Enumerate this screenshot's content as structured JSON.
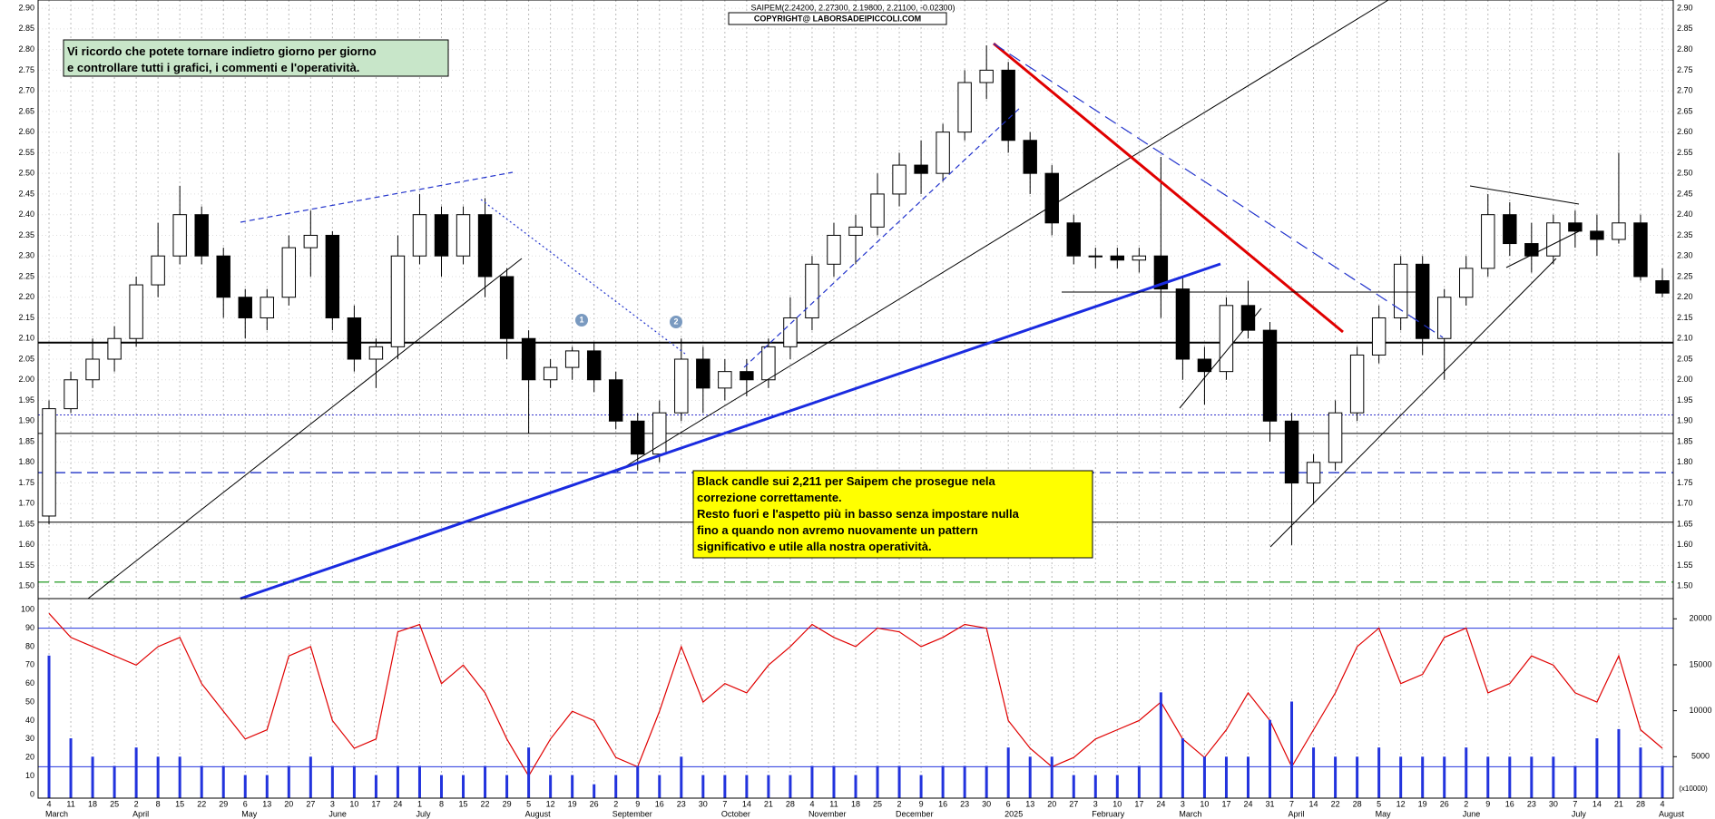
{
  "chart_data": [
    {
      "type": "candlestick",
      "title": "SAIPEM(2.24200, 2.27300, 2.19800, 2.21100, -0.02300)",
      "subtitle": "COPYRIGHT@ LABORSADEIPICCOLI.COM",
      "note": [
        "Vi ricordo che potete tornare indietro giorno per giorno",
        "e controllare tutti i grafici, i commenti e l'operatività."
      ],
      "comment": [
        "Black candle sui 2,211 per Saipem che prosegue nela",
        "correzione correttamente.",
        "Resto fuori e l'aspetto più in basso senza impostare nulla",
        "fino a quando non avremo nuovamente un pattern",
        "significativo e utile alla nostra operatività."
      ],
      "markers": [
        "1",
        "2"
      ],
      "open": [
        1.67,
        1.93,
        2.0,
        2.05,
        2.1,
        2.23,
        2.3,
        2.4,
        2.3,
        2.2,
        2.15,
        2.2,
        2.32,
        2.35,
        2.15,
        2.05,
        2.08,
        2.3,
        2.4,
        2.3,
        2.4,
        2.25,
        2.1,
        2.0,
        2.03,
        2.07,
        2.0,
        1.9,
        1.82,
        1.92,
        2.05,
        1.98,
        2.02,
        2.0,
        2.08,
        2.15,
        2.28,
        2.35,
        2.37,
        2.45,
        2.52,
        2.5,
        2.6,
        2.72,
        2.75,
        2.58,
        2.5,
        2.38,
        2.3,
        2.3,
        2.29,
        2.3,
        2.22,
        2.05,
        2.02,
        2.18,
        2.12,
        1.9,
        1.75,
        1.8,
        1.92,
        2.06,
        2.15,
        2.28,
        2.1,
        2.2,
        2.27,
        2.4,
        2.33,
        2.3,
        2.38,
        2.36,
        2.34,
        2.38,
        2.24
      ],
      "high": [
        1.95,
        2.02,
        2.1,
        2.13,
        2.25,
        2.38,
        2.47,
        2.42,
        2.32,
        2.22,
        2.22,
        2.35,
        2.41,
        2.36,
        2.18,
        2.1,
        2.35,
        2.45,
        2.42,
        2.42,
        2.44,
        2.27,
        2.12,
        2.05,
        2.08,
        2.09,
        2.02,
        1.92,
        1.95,
        2.1,
        2.08,
        2.05,
        2.05,
        2.1,
        2.2,
        2.3,
        2.38,
        2.4,
        2.5,
        2.55,
        2.58,
        2.62,
        2.75,
        2.81,
        2.77,
        2.6,
        2.52,
        2.4,
        2.32,
        2.32,
        2.32,
        2.54,
        2.25,
        2.08,
        2.2,
        2.24,
        2.14,
        1.92,
        1.82,
        1.95,
        2.08,
        2.18,
        2.3,
        2.3,
        2.22,
        2.3,
        2.45,
        2.43,
        2.38,
        2.4,
        2.41,
        2.4,
        2.55,
        2.4,
        2.27
      ],
      "low": [
        1.65,
        1.92,
        1.98,
        2.02,
        2.08,
        2.2,
        2.28,
        2.28,
        2.15,
        2.1,
        2.12,
        2.18,
        2.25,
        2.12,
        2.02,
        1.98,
        2.05,
        2.28,
        2.25,
        2.28,
        2.2,
        2.05,
        1.87,
        1.98,
        2.0,
        1.97,
        1.88,
        1.78,
        1.8,
        1.9,
        1.92,
        1.95,
        1.96,
        1.98,
        2.05,
        2.12,
        2.25,
        2.28,
        2.35,
        2.42,
        2.45,
        2.48,
        2.58,
        2.68,
        2.55,
        2.45,
        2.35,
        2.28,
        2.27,
        2.27,
        2.26,
        2.15,
        2.0,
        1.94,
        2.0,
        2.1,
        1.85,
        1.6,
        1.7,
        1.78,
        1.9,
        2.04,
        2.12,
        2.06,
        2.0,
        2.18,
        2.25,
        2.3,
        2.26,
        2.28,
        2.32,
        2.3,
        2.33,
        2.24,
        2.2
      ],
      "close": [
        1.93,
        2.0,
        2.05,
        2.1,
        2.23,
        2.3,
        2.4,
        2.3,
        2.2,
        2.15,
        2.2,
        2.32,
        2.35,
        2.15,
        2.05,
        2.08,
        2.3,
        2.4,
        2.3,
        2.4,
        2.25,
        2.1,
        2.0,
        2.03,
        2.07,
        2.0,
        1.9,
        1.82,
        1.92,
        2.05,
        1.98,
        2.02,
        2.0,
        2.08,
        2.15,
        2.28,
        2.35,
        2.37,
        2.45,
        2.52,
        2.5,
        2.6,
        2.72,
        2.75,
        2.58,
        2.5,
        2.38,
        2.3,
        2.3,
        2.29,
        2.3,
        2.22,
        2.05,
        2.02,
        2.18,
        2.12,
        1.9,
        1.75,
        1.8,
        1.92,
        2.06,
        2.15,
        2.28,
        2.1,
        2.2,
        2.27,
        2.4,
        2.33,
        2.3,
        2.38,
        2.36,
        2.34,
        2.38,
        2.25,
        2.21
      ],
      "ylim": [
        1.47,
        2.92
      ],
      "yticks": [
        {
          "value": 2.9,
          "label": "2.90"
        },
        {
          "value": 2.85,
          "label": "2.85"
        },
        {
          "value": 2.8,
          "label": "2.80"
        },
        {
          "value": 2.75,
          "label": "2.75"
        },
        {
          "value": 2.7,
          "label": "2.70"
        },
        {
          "value": 2.65,
          "label": "2.65"
        },
        {
          "value": 2.6,
          "label": "2.60"
        },
        {
          "value": 2.55,
          "label": "2.55"
        },
        {
          "value": 2.5,
          "label": "2.50"
        },
        {
          "value": 2.45,
          "label": "2.45"
        },
        {
          "value": 2.4,
          "label": "2.40"
        },
        {
          "value": 2.35,
          "label": "2.35"
        },
        {
          "value": 2.3,
          "label": "2.30"
        },
        {
          "value": 2.25,
          "label": "2.25"
        },
        {
          "value": 2.2,
          "label": "2.20"
        },
        {
          "value": 2.15,
          "label": "2.15"
        },
        {
          "value": 2.1,
          "label": "2.10"
        },
        {
          "value": 2.05,
          "label": "2.05"
        },
        {
          "value": 2.0,
          "label": "2.00"
        },
        {
          "value": 1.95,
          "label": "1.95"
        },
        {
          "value": 1.9,
          "label": "1.90"
        },
        {
          "value": 1.85,
          "label": "1.85"
        },
        {
          "value": 1.8,
          "label": "1.80"
        },
        {
          "value": 1.75,
          "label": "1.75"
        },
        {
          "value": 1.7,
          "label": "1.70"
        },
        {
          "value": 1.65,
          "label": "1.65"
        },
        {
          "value": 1.6,
          "label": "1.60"
        },
        {
          "value": 1.55,
          "label": "1.55"
        },
        {
          "value": 1.5,
          "label": "1.50"
        }
      ],
      "levels": [
        {
          "value": 2.09,
          "color": "#000000",
          "width": 2,
          "dash": ""
        },
        {
          "value": 1.915,
          "color": "#3333cc",
          "width": 1,
          "dash": "2 2"
        },
        {
          "value": 1.87,
          "color": "#000000",
          "width": 1,
          "dash": ""
        },
        {
          "value": 1.775,
          "color": "#3344cc",
          "width": 1.5,
          "dash": "12 6"
        },
        {
          "value": 1.655,
          "color": "#000000",
          "width": 1,
          "dash": ""
        },
        {
          "value": 1.51,
          "color": "#44aa44",
          "width": 1.5,
          "dash": "12 6"
        }
      ],
      "grid": true
    },
    {
      "type": "line",
      "categories": [
        "4",
        "11",
        "18",
        "25",
        "2",
        "8",
        "15",
        "22",
        "29",
        "6",
        "13",
        "20",
        "27",
        "3",
        "10",
        "17",
        "24",
        "1",
        "8",
        "15",
        "22",
        "29",
        "5",
        "12",
        "19",
        "26",
        "2",
        "9",
        "16",
        "23",
        "30",
        "7",
        "14",
        "21",
        "28",
        "4",
        "11",
        "18",
        "25",
        "2",
        "9",
        "16",
        "23",
        "30",
        "6",
        "13",
        "20",
        "27",
        "3",
        "10",
        "17",
        "24",
        "3",
        "10",
        "17",
        "24",
        "31",
        "7",
        "14",
        "22",
        "28",
        "5",
        "12",
        "19",
        "26",
        "2",
        "9",
        "16",
        "23",
        "30",
        "7",
        "14",
        "21",
        "28",
        "4"
      ],
      "months": [
        "March",
        null,
        null,
        null,
        "April",
        null,
        null,
        null,
        null,
        "May",
        null,
        null,
        null,
        "June",
        null,
        null,
        null,
        "July",
        null,
        null,
        null,
        null,
        "August",
        null,
        null,
        null,
        "September",
        null,
        null,
        null,
        null,
        "October",
        null,
        null,
        null,
        "November",
        null,
        null,
        null,
        "December",
        null,
        null,
        null,
        null,
        "2025",
        null,
        null,
        null,
        "February",
        null,
        null,
        null,
        "March",
        null,
        null,
        null,
        null,
        "April",
        null,
        null,
        null,
        "May",
        null,
        null,
        null,
        "June",
        null,
        null,
        null,
        null,
        "July",
        null,
        null,
        null,
        "August"
      ],
      "series": [
        {
          "color": "#e00000",
          "values": [
            98,
            85,
            80,
            75,
            70,
            80,
            85,
            60,
            45,
            30,
            35,
            75,
            80,
            40,
            25,
            30,
            88,
            92,
            60,
            70,
            55,
            30,
            10,
            30,
            45,
            40,
            20,
            15,
            45,
            80,
            50,
            60,
            55,
            70,
            80,
            92,
            85,
            80,
            90,
            88,
            80,
            85,
            92,
            90,
            40,
            25,
            15,
            20,
            30,
            35,
            40,
            50,
            30,
            20,
            35,
            55,
            40,
            15,
            35,
            55,
            80,
            90,
            60,
            65,
            85,
            90,
            55,
            60,
            75,
            70,
            55,
            50,
            75,
            35,
            25
          ]
        },
        {
          "color": "#2233dd",
          "axis": "y2",
          "values": [
            16000,
            7000,
            5000,
            4000,
            6000,
            5000,
            5000,
            4000,
            4000,
            3000,
            3000,
            4000,
            5000,
            4000,
            4000,
            3000,
            4000,
            4000,
            3000,
            3000,
            4000,
            3000,
            6000,
            3000,
            3000,
            2000,
            3000,
            4000,
            3000,
            5000,
            3000,
            3000,
            3000,
            3000,
            3000,
            4000,
            4000,
            3000,
            4000,
            4000,
            3000,
            4000,
            4000,
            4000,
            6000,
            5000,
            5000,
            3000,
            3000,
            3000,
            4000,
            12000,
            7000,
            5000,
            5000,
            5000,
            9000,
            11000,
            6000,
            5000,
            5000,
            6000,
            5000,
            5000,
            5000,
            6000,
            5000,
            5000,
            5000,
            5000,
            4000,
            7000,
            8000,
            6000,
            4000
          ]
        }
      ],
      "ylim": [
        -2,
        106
      ],
      "yticks": [
        0,
        10,
        20,
        30,
        40,
        50,
        60,
        70,
        80,
        90,
        100
      ],
      "y2lim": [
        490,
        22200
      ],
      "y2ticks": [
        5000,
        10000,
        15000,
        20000
      ],
      "y2label": "(x10000)",
      "levels": [
        90,
        15
      ],
      "grid": true
    }
  ]
}
